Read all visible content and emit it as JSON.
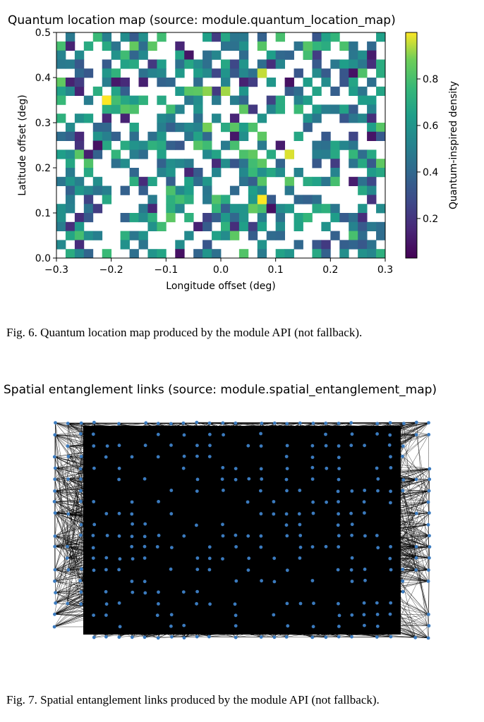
{
  "chart_data": [
    {
      "type": "heatmap",
      "title": "Quantum location map (source: module.quantum_location_map)",
      "xlabel": "Longitude offset (deg)",
      "ylabel": "Latitude offset (deg)",
      "xlim": [
        -0.3,
        0.3
      ],
      "ylim": [
        0.0,
        0.5
      ],
      "xticks": [
        "−0.3",
        "−0.2",
        "−0.1",
        "0.0",
        "0.1",
        "0.2",
        "0.3"
      ],
      "yticks": [
        "0.0",
        "0.1",
        "0.2",
        "0.3",
        "0.4",
        "0.5"
      ],
      "colorbar": {
        "label": "Quantum-inspired density",
        "range": [
          0.03,
          1.0
        ],
        "ticks": [
          "0.2",
          "0.4",
          "0.6",
          "0.8"
        ],
        "colormap": "viridis"
      },
      "grid": {
        "cols": 36,
        "rows": 25
      },
      "cells": [
        {
          "x": -0.25,
          "y": 0.385,
          "v": 0.2
        },
        {
          "x": -0.21,
          "y": 0.345,
          "v": 1.0
        },
        {
          "x": -0.19,
          "y": 0.345,
          "v": 0.78
        },
        {
          "x": -0.23,
          "y": 0.255,
          "v": 0.05
        },
        {
          "x": -0.14,
          "y": 0.355,
          "v": 0.72
        },
        {
          "x": -0.03,
          "y": 0.365,
          "v": 0.9
        },
        {
          "x": 0.0,
          "y": 0.365,
          "v": 0.92
        },
        {
          "x": 0.08,
          "y": 0.415,
          "v": 0.95
        },
        {
          "x": 0.16,
          "y": 0.445,
          "v": 0.78
        },
        {
          "x": 0.15,
          "y": 0.475,
          "v": 0.82
        },
        {
          "x": 0.12,
          "y": 0.395,
          "v": 0.05
        },
        {
          "x": 0.12,
          "y": 0.225,
          "v": 0.97
        },
        {
          "x": 0.08,
          "y": 0.125,
          "v": 1.0
        },
        {
          "x": 0.06,
          "y": 0.105,
          "v": 0.85
        },
        {
          "x": -0.02,
          "y": 0.285,
          "v": 0.88
        },
        {
          "x": 0.09,
          "y": 0.105,
          "v": 0.05
        },
        {
          "x": -0.1,
          "y": 0.155,
          "v": 0.8
        }
      ],
      "cell_note": "Remaining populated cells have densities spread between about 0.05 and 1.0 (mostly 0.3–0.7)."
    },
    {
      "type": "scatter",
      "title": "Spatial entanglement links (source: module.spatial_entanglement_map)",
      "xlim": [
        -0.3,
        0.3
      ],
      "ylim": [
        0.0,
        0.5
      ],
      "node_color": "#3b7bbf",
      "edge_color": "#000000",
      "note": "Nodes at grid locations connected by dense black edges."
    }
  ],
  "captions": {
    "fig6": "Fig. 6.  Quantum location map produced by the module API (not fallback).",
    "fig7": "Fig. 7.  Spatial entanglement links produced by the module API (not fallback)."
  }
}
